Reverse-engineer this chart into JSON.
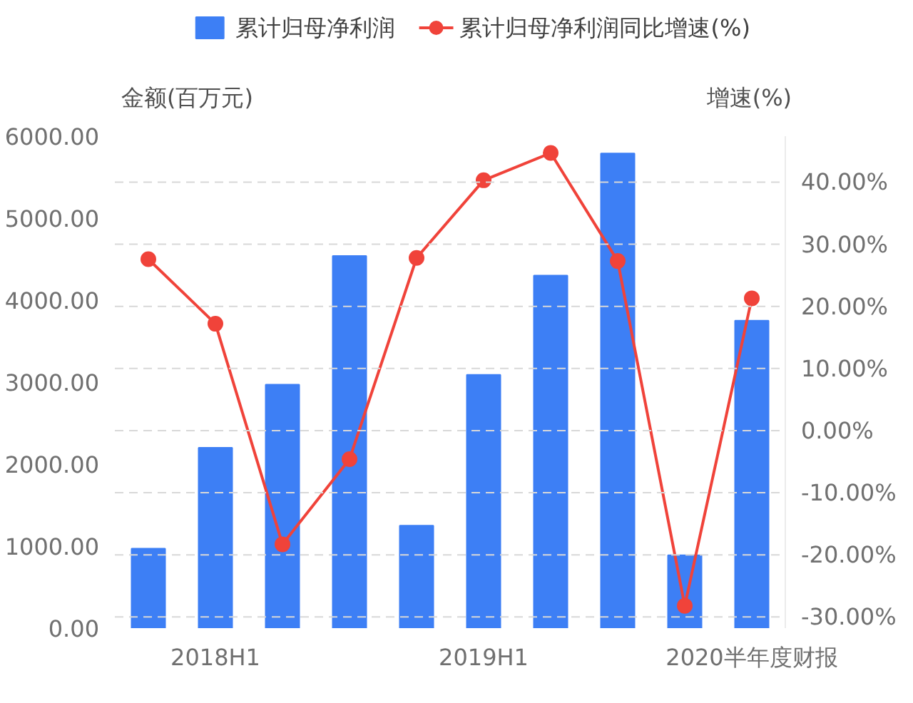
{
  "chart_data": {
    "type": "bar",
    "ylabel": "金额(百万元)",
    "y2label": "增速(%)",
    "categories": [
      null,
      "2018H1",
      null,
      null,
      null,
      "2019H1",
      null,
      null,
      null,
      "2020半年度财报"
    ],
    "series": [
      {
        "name": "累计归母净利润",
        "color": "#3d7ff5",
        "values": [
          970,
          2200,
          2970,
          4540,
          1250,
          3090,
          4300,
          5790,
          890,
          3750
        ]
      },
      {
        "name": "累计归母净利润同比增速(%)",
        "type": "line",
        "axis": "y2",
        "color": "#f0433a",
        "marker": "circle",
        "values": [
          27.6,
          17.2,
          -18.3,
          -4.6,
          27.8,
          40.3,
          44.7,
          27.3,
          -28.2,
          21.3
        ]
      }
    ],
    "ylim": [
      0,
      6000
    ],
    "yticks": [
      {
        "value": 0,
        "label": "0.00"
      },
      {
        "value": 1000,
        "label": "1000.00"
      },
      {
        "value": 2000,
        "label": "2000.00"
      },
      {
        "value": 3000,
        "label": "3000.00"
      },
      {
        "value": 4000,
        "label": "4000.00"
      },
      {
        "value": 5000,
        "label": "5000.00"
      },
      {
        "value": 6000,
        "label": "6000.00"
      }
    ],
    "y2lim": [
      -31.8,
      47.4
    ],
    "y2ticks": [
      {
        "value": -30,
        "label": "-30.00%"
      },
      {
        "value": -20,
        "label": "-20.00%"
      },
      {
        "value": -10,
        "label": "-10.00%"
      },
      {
        "value": 0,
        "label": "0.00%"
      },
      {
        "value": 10,
        "label": "10.00%"
      },
      {
        "value": 20,
        "label": "20.00%"
      },
      {
        "value": 30,
        "label": "30.00%"
      },
      {
        "value": 40,
        "label": "40.00%"
      }
    ],
    "grid": "y",
    "legend": "top"
  }
}
